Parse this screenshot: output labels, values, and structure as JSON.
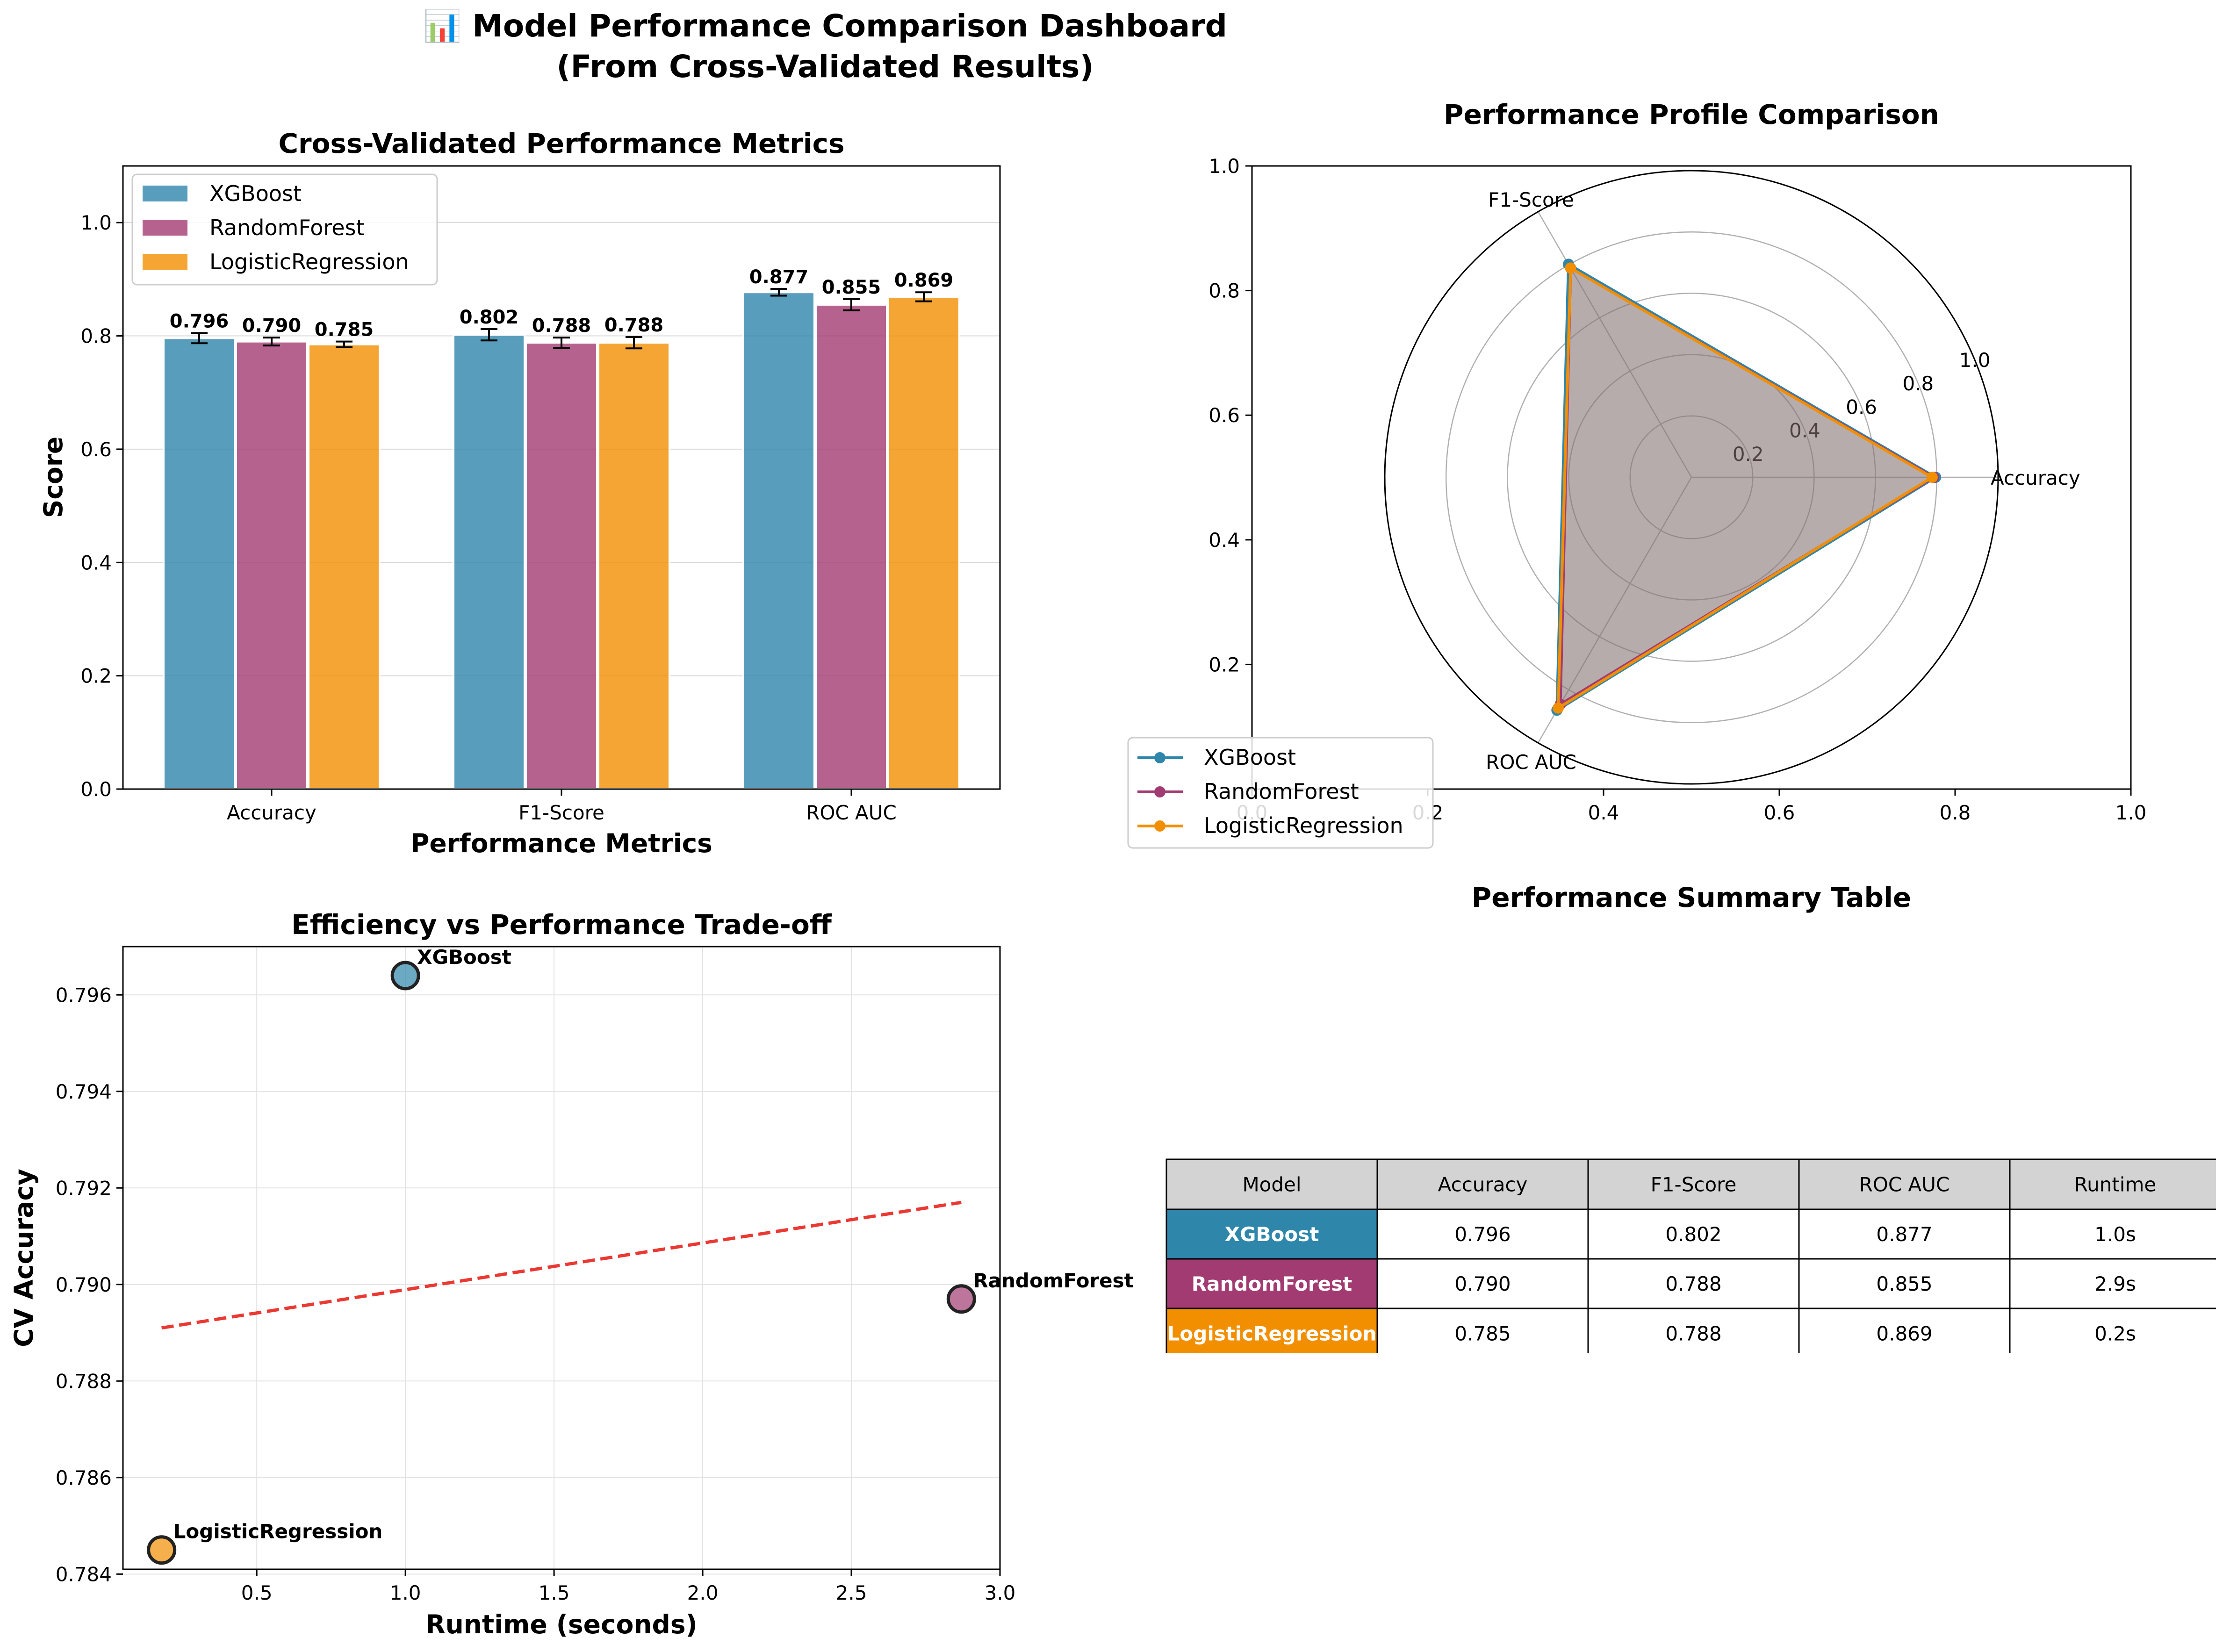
{
  "dashboard": {
    "title_line1": "📊 Model Performance Comparison Dashboard",
    "title_line2": "(From Cross-Validated Results)"
  },
  "colors": {
    "XGBoost": "#2E86AB",
    "RandomForest": "#A23B72",
    "LogisticRegression": "#F18F01",
    "trend": "#E8231D"
  },
  "chart_data": [
    {
      "id": "bar",
      "type": "bar",
      "title": "Cross-Validated Performance Metrics",
      "xlabel": "Performance Metrics",
      "ylabel": "Score",
      "ylim": [
        0,
        1.1
      ],
      "yticks": [
        0.0,
        0.2,
        0.4,
        0.6,
        0.8,
        1.0
      ],
      "categories": [
        "Accuracy",
        "F1-Score",
        "ROC AUC"
      ],
      "grid": "y",
      "legend": "upper-left",
      "series": [
        {
          "name": "XGBoost",
          "values": [
            0.796,
            0.802,
            0.877
          ],
          "errors": [
            0.009,
            0.01,
            0.006
          ],
          "labels": [
            "0.796",
            "0.802",
            "0.877"
          ]
        },
        {
          "name": "RandomForest",
          "values": [
            0.79,
            0.788,
            0.855
          ],
          "errors": [
            0.007,
            0.009,
            0.01
          ],
          "labels": [
            "0.790",
            "0.788",
            "0.855"
          ]
        },
        {
          "name": "LogisticRegression",
          "values": [
            0.785,
            0.788,
            0.869
          ],
          "errors": [
            0.005,
            0.01,
            0.008
          ],
          "labels": [
            "0.785",
            "0.788",
            "0.869"
          ]
        }
      ]
    },
    {
      "id": "radar",
      "type": "radar",
      "title": "Performance Profile Comparison",
      "axes": [
        "Accuracy",
        "F1-Score",
        "ROC AUC"
      ],
      "rlim": [
        0,
        1.0
      ],
      "rticks": [
        "0.2",
        "0.4",
        "0.6",
        "0.8",
        "1.0"
      ],
      "frame_ticks_x": [
        "0.0",
        "0.2",
        "0.4",
        "0.6",
        "0.8",
        "1.0"
      ],
      "frame_ticks_y": [
        "0.2",
        "0.4",
        "0.6",
        "0.8",
        "1.0"
      ],
      "legend": "lower-left",
      "series": [
        {
          "name": "XGBoost",
          "values": [
            0.796,
            0.802,
            0.877
          ]
        },
        {
          "name": "RandomForest",
          "values": [
            0.79,
            0.788,
            0.855
          ]
        },
        {
          "name": "LogisticRegression",
          "values": [
            0.785,
            0.788,
            0.869
          ]
        }
      ]
    },
    {
      "id": "scatter",
      "type": "scatter",
      "title": "Efficiency vs Performance Trade-off",
      "xlabel": "Runtime (seconds)",
      "ylabel": "CV Accuracy",
      "xlim": [
        0.05,
        3.0
      ],
      "ylim": [
        0.7841,
        0.797
      ],
      "xticks": [
        0.5,
        1.0,
        1.5,
        2.0,
        2.5,
        3.0
      ],
      "xtick_labels": [
        "0.5",
        "1.0",
        "1.5",
        "2.0",
        "2.5",
        "3.0"
      ],
      "yticks": [
        0.784,
        0.786,
        0.788,
        0.79,
        0.792,
        0.794,
        0.796
      ],
      "ytick_labels": [
        "0.784",
        "0.786",
        "0.788",
        "0.790",
        "0.792",
        "0.794",
        "0.796"
      ],
      "grid": true,
      "points": [
        {
          "name": "XGBoost",
          "x": 1.0,
          "y": 0.7964
        },
        {
          "name": "RandomForest",
          "x": 2.87,
          "y": 0.7897
        },
        {
          "name": "LogisticRegression",
          "x": 0.18,
          "y": 0.7845
        }
      ],
      "trendline": {
        "x": [
          0.18,
          2.87
        ],
        "y": [
          0.7891,
          0.7917
        ],
        "style": "dashed"
      }
    }
  ],
  "table": {
    "title": "Performance Summary Table",
    "headers": [
      "Model",
      "Accuracy",
      "F1-Score",
      "ROC AUC",
      "Runtime"
    ],
    "rows": [
      {
        "model": "XGBoost",
        "cells": [
          "0.796",
          "0.802",
          "0.877",
          "1.0s"
        ]
      },
      {
        "model": "RandomForest",
        "cells": [
          "0.790",
          "0.788",
          "0.855",
          "2.9s"
        ]
      },
      {
        "model": "LogisticRegression",
        "cells": [
          "0.785",
          "0.788",
          "0.869",
          "0.2s"
        ]
      }
    ]
  }
}
